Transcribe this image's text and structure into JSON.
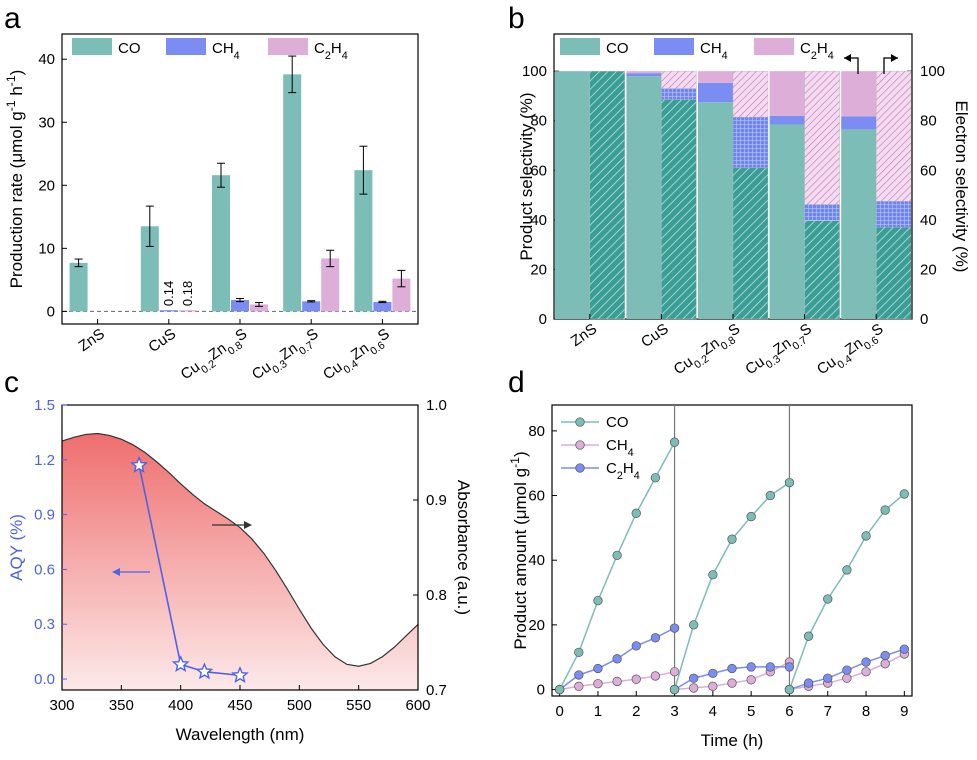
{
  "chart_data": [
    {
      "panel": "a",
      "type": "bar",
      "ylabel": "Production rate (μmol g⁻¹ h⁻¹)",
      "ylim": [
        -2,
        44
      ],
      "yticks": [
        0,
        10,
        20,
        30,
        40
      ],
      "categories": [
        "ZnS",
        "CuS",
        "Cu0.2Zn0.8S",
        "Cu0.3Zn0.7S",
        "Cu0.4Zn0.6S"
      ],
      "series": [
        {
          "name": "CO",
          "color": "#7dbdb7",
          "values": [
            7.7,
            13.5,
            21.6,
            37.6,
            22.4
          ],
          "errors": [
            0.6,
            3.2,
            1.9,
            2.9,
            3.8
          ]
        },
        {
          "name": "CH4",
          "color": "#7b8df2",
          "values": [
            0,
            0.14,
            1.8,
            1.6,
            1.5
          ],
          "errors": [
            0,
            0,
            0.25,
            0.1,
            0.1
          ]
        },
        {
          "name": "C2H4",
          "color": "#dcaed8",
          "values": [
            0,
            0.18,
            1.1,
            8.4,
            5.2
          ],
          "errors": [
            0,
            0,
            0.3,
            1.3,
            1.3
          ]
        }
      ],
      "data_labels": [
        "0.14",
        "0.18"
      ],
      "legend": [
        "CO",
        "CH4",
        "C2H4"
      ]
    },
    {
      "panel": "b",
      "type": "bar",
      "subtype": "stacked-paired",
      "ylabel": "Product selectivity (%)",
      "y2label": "Electron selectivity (%)",
      "ylim": [
        0,
        115
      ],
      "yticks": [
        0,
        20,
        40,
        60,
        80,
        100
      ],
      "categories": [
        "ZnS",
        "CuS",
        "Cu0.2Zn0.8S",
        "Cu0.3Zn0.7S",
        "Cu0.4Zn0.6S"
      ],
      "product_selectivity": {
        "CO": [
          100,
          98,
          87.5,
          78.5,
          76.5
        ],
        "CH4": [
          0,
          1.2,
          7.8,
          3.5,
          5.3
        ],
        "C2H4": [
          0,
          0.8,
          4.7,
          18,
          18.2
        ]
      },
      "electron_selectivity": {
        "CO": [
          100,
          88.5,
          61,
          39.7,
          37
        ],
        "CH4": [
          0,
          4.5,
          20.5,
          6.5,
          10.5
        ],
        "C2H4": [
          0,
          7,
          18.5,
          53.8,
          52.5
        ]
      },
      "legend": [
        "CO",
        "CH4",
        "C2H4"
      ]
    },
    {
      "panel": "c",
      "type": "line",
      "xlabel": "Wavelength (nm)",
      "ylabel": "AQY (%)",
      "y2label": "Absorbance (a.u.)",
      "xlim": [
        300,
        600
      ],
      "xticks": [
        300,
        350,
        400,
        450,
        500,
        550,
        600
      ],
      "ylim": [
        -0.06,
        1.5
      ],
      "yticks": [
        0.0,
        0.3,
        0.6,
        0.9,
        1.2,
        1.5
      ],
      "y2lim": [
        0.7,
        1.0
      ],
      "y2ticks": [
        0.7,
        0.8,
        0.9,
        1.0
      ],
      "aqy": {
        "x": [
          365,
          400,
          420,
          450
        ],
        "y": [
          1.17,
          0.08,
          0.04,
          0.02
        ]
      },
      "absorbance": {
        "x": [
          300,
          310,
          320,
          330,
          340,
          350,
          360,
          370,
          380,
          390,
          400,
          410,
          420,
          430,
          440,
          450,
          460,
          470,
          480,
          490,
          500,
          510,
          520,
          530,
          540,
          550,
          560,
          570,
          580,
          590,
          600
        ],
        "y": [
          0.962,
          0.966,
          0.969,
          0.97,
          0.968,
          0.964,
          0.958,
          0.95,
          0.94,
          0.929,
          0.917,
          0.906,
          0.896,
          0.888,
          0.88,
          0.871,
          0.859,
          0.844,
          0.826,
          0.806,
          0.785,
          0.765,
          0.748,
          0.735,
          0.727,
          0.725,
          0.728,
          0.735,
          0.745,
          0.757,
          0.769
        ]
      }
    },
    {
      "panel": "d",
      "type": "line",
      "xlabel": "Time (h)",
      "ylabel": "Product amount (μmol g⁻¹)",
      "xlim": [
        -0.2,
        9.2
      ],
      "xticks": [
        0,
        1,
        2,
        3,
        4,
        5,
        6,
        7,
        8,
        9
      ],
      "ylim": [
        -2,
        88
      ],
      "yticks": [
        0,
        20,
        40,
        60,
        80
      ],
      "cycle_separators": [
        3,
        6
      ],
      "series": [
        {
          "name": "CO",
          "color": "#7dbdb7",
          "cycles": [
            {
              "x": [
                0,
                0.5,
                1,
                1.5,
                2,
                2.5,
                3
              ],
              "y": [
                0,
                11.5,
                27.5,
                41.5,
                54.5,
                65.5,
                76.5
              ]
            },
            {
              "x": [
                3,
                3.5,
                4,
                4.5,
                5,
                5.5,
                6
              ],
              "y": [
                0,
                20,
                35.5,
                46.5,
                53.5,
                60,
                64
              ]
            },
            {
              "x": [
                6,
                6.5,
                7,
                7.5,
                8,
                8.5,
                9
              ],
              "y": [
                0,
                16.5,
                28,
                37,
                47.5,
                55.5,
                60.5
              ]
            }
          ]
        },
        {
          "name": "CH4",
          "color": "#dcaed8",
          "cycles": [
            {
              "x": [
                0,
                0.5,
                1,
                1.5,
                2,
                2.5,
                3
              ],
              "y": [
                0,
                1,
                1.8,
                2.5,
                3.2,
                4.2,
                5.5
              ]
            },
            {
              "x": [
                3,
                3.5,
                4,
                4.5,
                5,
                5.5,
                6
              ],
              "y": [
                0,
                0.5,
                1,
                2,
                3,
                5.5,
                8.5
              ]
            },
            {
              "x": [
                6,
                6.5,
                7,
                7.5,
                8,
                8.5,
                9
              ],
              "y": [
                0,
                1,
                2,
                3.5,
                5.5,
                8,
                11
              ]
            }
          ]
        },
        {
          "name": "C2H4",
          "color": "#7b8df2",
          "cycles": [
            {
              "x": [
                0,
                0.5,
                1,
                1.5,
                2,
                2.5,
                3
              ],
              "y": [
                0,
                4.5,
                6.5,
                9.5,
                13.5,
                16,
                19
              ]
            },
            {
              "x": [
                3,
                3.5,
                4,
                4.5,
                5,
                5.5,
                6
              ],
              "y": [
                0,
                3.5,
                5,
                6.5,
                7,
                7,
                7
              ]
            },
            {
              "x": [
                6,
                6.5,
                7,
                7.5,
                8,
                8.5,
                9
              ],
              "y": [
                0,
                2,
                3.5,
                6,
                8.5,
                10.5,
                12.5
              ]
            }
          ]
        }
      ],
      "legend": [
        "CO",
        "CH4",
        "C2H4"
      ]
    }
  ]
}
